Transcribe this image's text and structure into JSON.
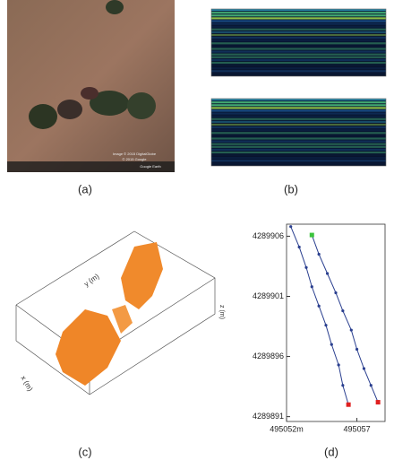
{
  "panels": {
    "a": {
      "caption": "(a)",
      "credits": [
        "Image © 2015 DigitalGlobe",
        "© 2015 Google",
        "Google Earth"
      ]
    },
    "b": {
      "caption": "(b)"
    },
    "c": {
      "caption": "(c)",
      "y_label": "y (m)",
      "x_label": "x (m)",
      "z_label": "z (m)"
    },
    "d": {
      "caption": "(d)",
      "xlim": [
        495052,
        495059
      ],
      "ylim": [
        4289890.6,
        4289907
      ],
      "xticks": [
        {
          "value": 495052,
          "label": "495052m"
        },
        495057
      ],
      "yticks": [
        4289906,
        4289901,
        4289896,
        4289891
      ],
      "tracks": [
        {
          "color": "#2a3f8f",
          "x": [
            495052.3,
            495052.9,
            495053.4,
            495053.8,
            495054.3,
            495054.8,
            495055.2,
            495055.7,
            495056.0,
            495056.4
          ],
          "y": [
            4289906.8,
            4289905.1,
            4289903.4,
            4289901.8,
            4289900.2,
            4289898.6,
            4289897.0,
            4289895.3,
            4289893.6,
            4289892.0
          ]
        },
        {
          "color": "#2a3f8f",
          "x": [
            495053.8,
            495054.3,
            495054.9,
            495055.5,
            495056.0,
            495056.6,
            495057.0,
            495057.5,
            495058.0,
            495058.5
          ],
          "y": [
            4289906.1,
            4289904.5,
            4289902.9,
            4289901.3,
            4289899.8,
            4289898.2,
            4289896.6,
            4289895.0,
            4289893.6,
            4289892.2
          ]
        }
      ]
    }
  }
}
